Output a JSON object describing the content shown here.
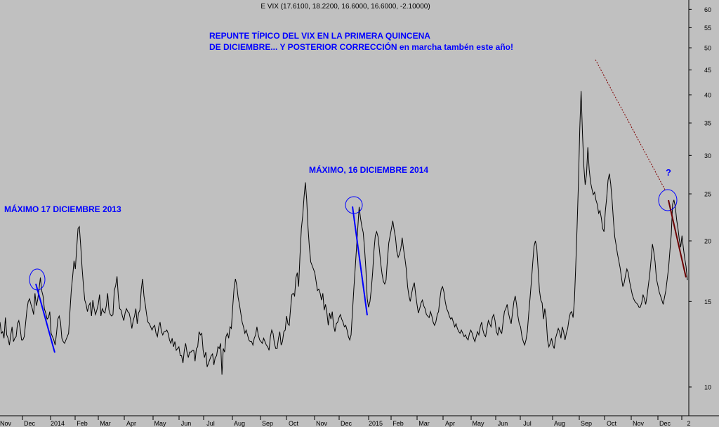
{
  "chart_data": {
    "type": "line",
    "title": "E VIX (17.6100, 18.2200, 16.6000, 16.6000, -2.10000)",
    "xlabel": "",
    "ylabel": "",
    "yscale": "log",
    "ylim": [
      8.5,
      62
    ],
    "grid": false,
    "x_tick_labels": [
      "Nov",
      "Dec",
      "2014",
      "Feb",
      "Mar",
      "Apr",
      "May",
      "Jun",
      "Jul",
      "Aug",
      "Sep",
      "Oct",
      "Nov",
      "Dec",
      "2015",
      "Feb",
      "Mar",
      "Apr",
      "May",
      "Jun",
      "Jul",
      "Aug",
      "Sep",
      "Oct",
      "Nov",
      "Dec",
      "2"
    ],
    "y_ticks": [
      10,
      15,
      20,
      25,
      30,
      35,
      40,
      45,
      50,
      55,
      60
    ],
    "series": [
      {
        "values": [
          13.6,
          12.9,
          13.0,
          12.6,
          13.9,
          12.8,
          12.6,
          12.2,
          12.8,
          13.3,
          12.4,
          12.6,
          12.7,
          13.5,
          13.7,
          13.2,
          12.5,
          12.5,
          12.7,
          13.5,
          14.4,
          15.0,
          15.2,
          14.8,
          14.5,
          14.1,
          15.6,
          14.7,
          15.1,
          15.9,
          16.8,
          15.8,
          15.4,
          14.5,
          14.2,
          13.8,
          13.9,
          14.3,
          12.9,
          12.7,
          12.5,
          12.2,
          12.9,
          13.8,
          14.0,
          13.6,
          12.6,
          12.4,
          12.3,
          12.5,
          12.7,
          12.9,
          14.3,
          15.8,
          16.9,
          18.2,
          17.5,
          19.3,
          21.2,
          21.4,
          19.5,
          17.6,
          16.2,
          15.1,
          14.8,
          14.3,
          14.7,
          14.9,
          14.0,
          15.1,
          14.5,
          14.1,
          14.4,
          14.8,
          15.5,
          14.0,
          14.5,
          14.3,
          14.2,
          14.7,
          15.6,
          14.4,
          14.1,
          14.0,
          14.1,
          15.8,
          16.2,
          16.9,
          15.3,
          14.5,
          14.4,
          14.0,
          13.7,
          14.2,
          14.5,
          14.3,
          14.2,
          13.8,
          13.2,
          13.7,
          14.0,
          14.5,
          13.5,
          14.2,
          14.4,
          15.9,
          16.7,
          15.4,
          14.8,
          14.1,
          13.6,
          13.5,
          13.3,
          13.1,
          13.3,
          13.4,
          12.9,
          12.7,
          13.3,
          13.6,
          13.0,
          12.8,
          13.0,
          13.0,
          13.1,
          12.9,
          12.5,
          12.3,
          12.6,
          12.1,
          12.4,
          11.9,
          12.0,
          12.1,
          11.6,
          11.6,
          11.2,
          11.9,
          12.3,
          11.8,
          11.5,
          11.8,
          11.8,
          11.9,
          11.9,
          11.3,
          12.0,
          12.1,
          13.0,
          12.8,
          12.9,
          11.9,
          11.5,
          11.8,
          11.0,
          11.2,
          11.4,
          11.6,
          11.7,
          11.1,
          11.5,
          11.6,
          12.1,
          12.0,
          12.3,
          10.6,
          12.0,
          11.8,
          12.7,
          12.9,
          12.6,
          13.3,
          13.2,
          14.6,
          16.0,
          16.7,
          16.2,
          15.3,
          14.8,
          14.2,
          13.6,
          13.3,
          12.9,
          13.1,
          12.8,
          12.5,
          12.4,
          12.4,
          12.2,
          12.6,
          12.8,
          13.3,
          12.8,
          12.5,
          12.4,
          12.3,
          12.6,
          12.4,
          12.2,
          12.1,
          11.9,
          12.7,
          13.1,
          12.9,
          12.3,
          12.0,
          12.0,
          12.6,
          13.0,
          12.2,
          12.4,
          13.0,
          13.1,
          14.0,
          13.5,
          13.4,
          14.5,
          15.5,
          15.6,
          15.4,
          16.8,
          17.2,
          16.1,
          18.6,
          21.2,
          22.5,
          24.6,
          26.4,
          24.3,
          21.3,
          19.4,
          18.1,
          17.8,
          17.5,
          17.2,
          16.5,
          15.8,
          15.9,
          15.6,
          15.1,
          15.6,
          14.4,
          14.8,
          14.2,
          13.4,
          14.2,
          13.8,
          14.3,
          13.4,
          13.0,
          13.5,
          13.6,
          13.9,
          14.1,
          13.8,
          13.6,
          13.3,
          13.4,
          13.1,
          12.7,
          12.5,
          12.8,
          14.3,
          15.9,
          17.5,
          19.3,
          21.3,
          23.5,
          22.3,
          21.4,
          20.8,
          19.3,
          17.5,
          15.2,
          14.6,
          15.0,
          15.9,
          17.2,
          19.1,
          20.5,
          20.9,
          20.4,
          19.2,
          18.0,
          17.1,
          16.5,
          16.3,
          16.6,
          18.3,
          19.8,
          20.5,
          21.2,
          22.0,
          21.1,
          20.3,
          19.0,
          18.5,
          18.8,
          19.3,
          20.3,
          19.2,
          18.4,
          17.5,
          16.1,
          15.4,
          15.0,
          15.6,
          16.1,
          16.4,
          15.5,
          14.8,
          14.2,
          14.5,
          14.9,
          15.1,
          14.7,
          14.5,
          14.1,
          14.0,
          13.9,
          14.3,
          14.0,
          13.6,
          13.4,
          13.6,
          14.1,
          14.3,
          15.2,
          15.9,
          16.1,
          15.7,
          15.0,
          14.5,
          14.3,
          14.0,
          13.8,
          13.9,
          13.6,
          13.3,
          13.5,
          13.2,
          13.0,
          12.9,
          13.1,
          12.9,
          12.7,
          12.8,
          12.6,
          12.5,
          12.9,
          13.1,
          12.9,
          12.6,
          12.4,
          12.7,
          13.0,
          12.8,
          13.3,
          13.6,
          13.1,
          12.8,
          12.7,
          13.2,
          13.7,
          13.5,
          13.3,
          13.9,
          14.1,
          13.7,
          13.0,
          12.8,
          13.3,
          13.0,
          12.9,
          13.6,
          14.3,
          14.5,
          14.8,
          14.2,
          13.8,
          13.5,
          14.2,
          15.0,
          15.4,
          14.8,
          14.0,
          13.5,
          13.3,
          12.7,
          12.4,
          12.2,
          12.5,
          13.0,
          14.1,
          15.2,
          16.5,
          18.0,
          19.5,
          20.0,
          19.4,
          17.6,
          15.8,
          15.1,
          14.9,
          13.8,
          14.5,
          13.9,
          12.5,
          12.1,
          12.3,
          12.6,
          12.2,
          12.0,
          12.6,
          12.9,
          13.2,
          13.0,
          12.6,
          13.3,
          13.0,
          12.5,
          12.9,
          13.2,
          13.8,
          14.2,
          14.3,
          13.9,
          15.1,
          17.8,
          21.4,
          26.3,
          34.0,
          40.7,
          33.2,
          28.5,
          26.1,
          27.4,
          31.2,
          28.1,
          26.4,
          25.6,
          24.9,
          25.2,
          24.3,
          23.8,
          22.8,
          23.1,
          22.3,
          21.2,
          20.9,
          23.0,
          24.5,
          26.7,
          27.5,
          26.2,
          24.3,
          22.1,
          20.4,
          19.6,
          18.8,
          18.2,
          17.6,
          16.8,
          16.1,
          16.4,
          17.0,
          17.5,
          17.2,
          16.5,
          16.0,
          15.5,
          15.2,
          15.0,
          14.9,
          14.8,
          14.6,
          14.6,
          14.9,
          15.5,
          15.2,
          14.8,
          15.4,
          16.2,
          17.1,
          18.3,
          19.7,
          19.0,
          18.1,
          16.7,
          16.2,
          15.7,
          15.4,
          15.1,
          14.8,
          15.3,
          15.8,
          16.7,
          17.6,
          19.1,
          20.6,
          23.8,
          24.3,
          23.5,
          22.1,
          21.2,
          20.1,
          19.4,
          20.5,
          19.3,
          18.4,
          17.7,
          16.6
        ],
        "color": "#000000"
      }
    ],
    "annotations": {
      "headline_line1": "REPUNTE TÍPICO DEL VIX EN LA PRIMERA QUINCENA",
      "headline_line2": "DE DICIEMBRE... Y POSTERIOR CORRECCIÓN en marcha tambén este año!",
      "peak_2013_label": "MÁXIMO 17 DICIEMBRE 2013",
      "peak_2014_label": "MÁXIMO, 16 DICIEMBRE 2014",
      "question_mark": "?"
    }
  },
  "colors": {
    "background": "#c0c0c0",
    "price_line": "#000000",
    "annotation_blue": "#0000ff",
    "correction_arrow": "#6b0000",
    "trend_dotted": "#800000"
  }
}
